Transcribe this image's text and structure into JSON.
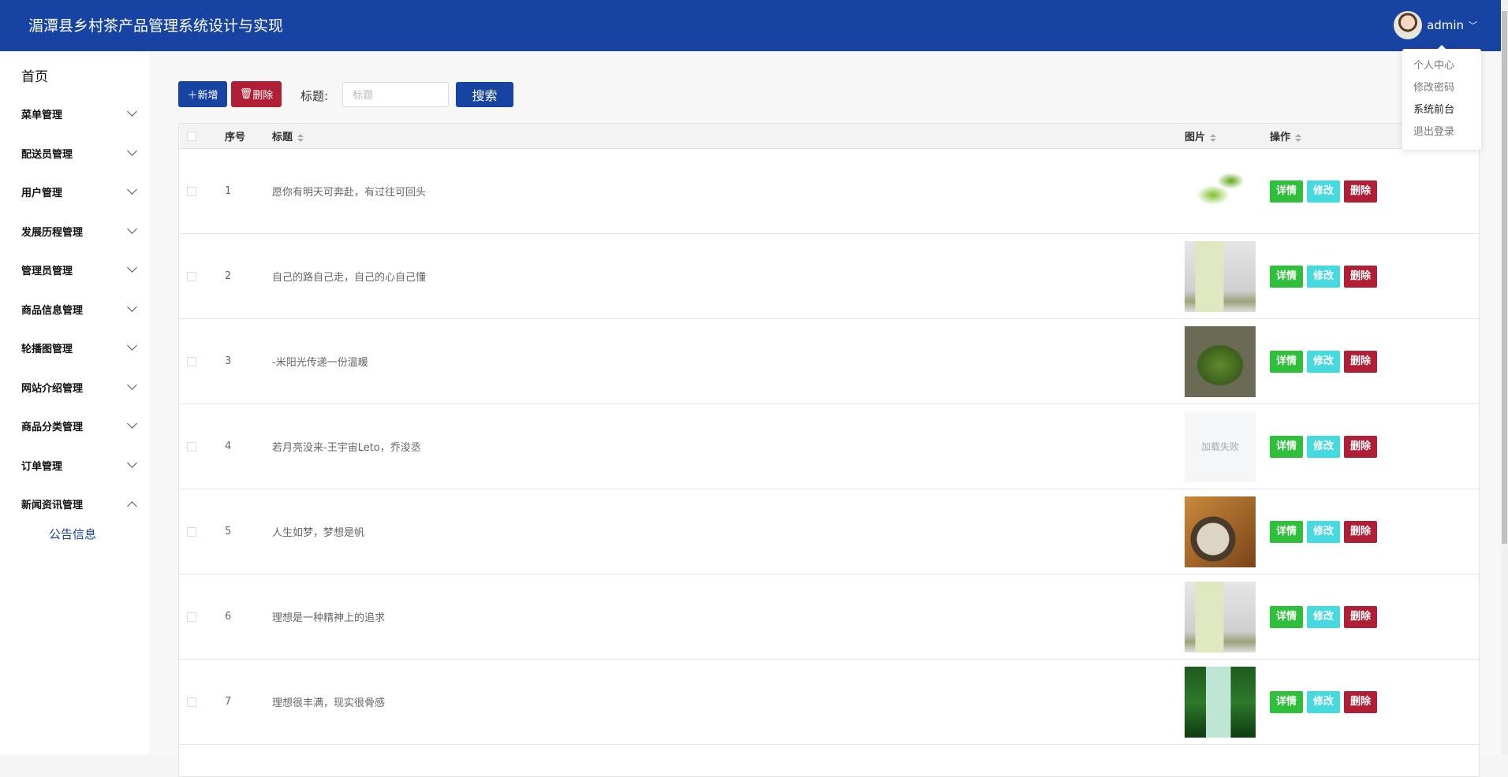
{
  "header": {
    "title": "湄潭县乡村茶产品管理系统设计与实现",
    "username": "admin"
  },
  "user_menu": [
    "个人中心",
    "修改密码",
    "系统前台",
    "退出登录"
  ],
  "sidebar": {
    "home": "首页",
    "items": [
      {
        "label": "菜单管理",
        "expanded": false
      },
      {
        "label": "配送员管理",
        "expanded": false
      },
      {
        "label": "用户管理",
        "expanded": false
      },
      {
        "label": "发展历程管理",
        "expanded": false
      },
      {
        "label": "管理员管理",
        "expanded": false
      },
      {
        "label": "商品信息管理",
        "expanded": false
      },
      {
        "label": "轮播图管理",
        "expanded": false
      },
      {
        "label": "网站介绍管理",
        "expanded": false
      },
      {
        "label": "商品分类管理",
        "expanded": false
      },
      {
        "label": "订单管理",
        "expanded": false
      },
      {
        "label": "新闻资讯管理",
        "expanded": true
      }
    ],
    "subitem": "公告信息"
  },
  "toolbar": {
    "add": "＋新增",
    "delete": "删除",
    "title_label": "标题:",
    "placeholder": "标题",
    "search": "搜索"
  },
  "table": {
    "headers": {
      "index": "序号",
      "title": "标题",
      "image": "图片",
      "ops": "操作"
    },
    "ops": {
      "detail": "详情",
      "edit": "修改",
      "delete": "删除"
    },
    "load_failed": "加载失败",
    "rows": [
      {
        "index": "1",
        "title": "愿你有明天可奔赴，有过往可回头",
        "image": "tea-leaves"
      },
      {
        "index": "2",
        "title": "自己的路自己走，自己的心自己懂",
        "image": "tea-glass"
      },
      {
        "index": "3",
        "title": "-米阳光传递一份温暖",
        "image": "green-tea-plate"
      },
      {
        "index": "4",
        "title": "若月亮没来-王宇宙Leto，乔浚丞",
        "image": "failed"
      },
      {
        "index": "5",
        "title": "人生如梦，梦想是帆",
        "image": "tea-bowl"
      },
      {
        "index": "6",
        "title": "理想是一种精神上的追求",
        "image": "tea-glass"
      },
      {
        "index": "7",
        "title": "理想很丰满，现实很骨感",
        "image": "tea-glass-green"
      }
    ]
  },
  "colors": {
    "primary": "#1743a3",
    "danger": "#b01f35",
    "success": "#2fbf3a",
    "info": "#45d9e0"
  }
}
